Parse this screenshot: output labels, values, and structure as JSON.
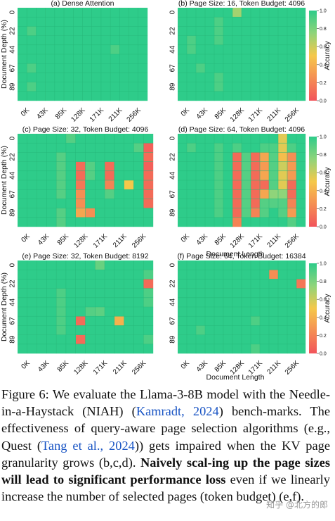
{
  "colors": {
    "green": "#2ecc8a",
    "light": "#8fd47a",
    "yellow": "#f5c84a",
    "orange": "#f59a52",
    "red": "#f2545b"
  },
  "chart_data": [
    {
      "type": "heatmap",
      "title": "(a) Dense Attention",
      "xlabel": "",
      "ylabel": "Document Depth (%)",
      "x": [
        "0K",
        "43K",
        "85K",
        "128K",
        "171K",
        "211K",
        "256K"
      ],
      "y": [
        "0",
        "22",
        "44",
        "67",
        "89"
      ],
      "rows": 10,
      "cols": 14,
      "default": 1.0,
      "cells": [
        [
          2,
          1,
          0.92
        ],
        [
          4,
          10,
          0.92
        ],
        [
          6,
          1,
          0.92
        ],
        [
          8,
          1,
          0.92
        ]
      ]
    },
    {
      "type": "heatmap",
      "title": "(b) Page Size: 16, Token Budget: 4096",
      "xlabel": "",
      "ylabel": "",
      "x": [
        "0K",
        "43K",
        "85K",
        "128K",
        "171K",
        "211K",
        "256K"
      ],
      "y": [
        "0",
        "22",
        "44",
        "67",
        "89"
      ],
      "rows": 10,
      "cols": 14,
      "default": 1.0,
      "cells": [
        [
          0,
          6,
          0.7
        ],
        [
          1,
          4,
          0.92
        ],
        [
          2,
          4,
          0.92
        ],
        [
          3,
          1,
          0.92
        ],
        [
          3,
          4,
          0.92
        ],
        [
          4,
          1,
          0.92
        ],
        [
          6,
          2,
          0.92
        ],
        [
          7,
          4,
          0.92
        ],
        [
          8,
          4,
          0.92
        ]
      ]
    },
    {
      "type": "heatmap",
      "title": "(c) Page Size: 32, Token Budget: 4096",
      "xlabel": "",
      "ylabel": "Document Depth (%)",
      "x": [
        "0K",
        "43K",
        "85K",
        "128K",
        "171K",
        "211K",
        "256K"
      ],
      "y": [
        "0",
        "22",
        "44",
        "67",
        "89"
      ],
      "rows": 10,
      "cols": 14,
      "default": 1.0,
      "cells": [
        [
          0,
          5,
          0.9
        ],
        [
          1,
          12,
          0.9
        ],
        [
          1,
          13,
          0.05
        ],
        [
          2,
          4,
          0.9
        ],
        [
          2,
          13,
          0.1
        ],
        [
          3,
          4,
          0.9
        ],
        [
          3,
          6,
          0.1
        ],
        [
          3,
          7,
          0.9
        ],
        [
          3,
          9,
          0.1
        ],
        [
          3,
          13,
          0.05
        ],
        [
          4,
          4,
          0.9
        ],
        [
          4,
          6,
          0.1
        ],
        [
          4,
          7,
          0.9
        ],
        [
          4,
          9,
          0.1
        ],
        [
          4,
          13,
          0.1
        ],
        [
          5,
          4,
          0.9
        ],
        [
          5,
          6,
          0.15
        ],
        [
          5,
          9,
          0.2
        ],
        [
          5,
          11,
          0.5
        ],
        [
          5,
          13,
          0.1
        ],
        [
          6,
          4,
          0.9
        ],
        [
          6,
          6,
          0.25
        ],
        [
          6,
          9,
          0.9
        ],
        [
          6,
          13,
          0.1
        ],
        [
          7,
          6,
          0.25
        ],
        [
          7,
          13,
          0.1
        ],
        [
          8,
          4,
          0.9
        ],
        [
          8,
          6,
          0.35
        ],
        [
          8,
          7,
          0.25
        ],
        [
          9,
          4,
          0.9
        ]
      ]
    },
    {
      "type": "heatmap",
      "title": "(d) Page Size: 64, Token Budget: 4096",
      "xlabel": "",
      "ylabel": "",
      "x": [
        "0K",
        "43K",
        "85K",
        "128K",
        "171K",
        "211K",
        "256K"
      ],
      "y": [
        "0",
        "22",
        "44",
        "67",
        "89"
      ],
      "rows": 10,
      "cols": 14,
      "default": 1.0,
      "cells": [
        [
          0,
          11,
          0.55
        ],
        [
          1,
          1,
          0.92
        ],
        [
          1,
          4,
          0.92
        ],
        [
          1,
          6,
          0.92
        ],
        [
          1,
          9,
          0.92
        ],
        [
          1,
          10,
          0.92
        ],
        [
          1,
          11,
          0.55
        ],
        [
          1,
          12,
          0.92
        ],
        [
          2,
          4,
          0.92
        ],
        [
          2,
          6,
          0.1
        ],
        [
          2,
          7,
          0.9
        ],
        [
          2,
          8,
          0.1
        ],
        [
          2,
          9,
          0.35
        ],
        [
          2,
          10,
          0.9
        ],
        [
          2,
          11,
          0.45
        ],
        [
          2,
          12,
          0.25
        ],
        [
          3,
          4,
          0.92
        ],
        [
          3,
          6,
          0.1
        ],
        [
          3,
          7,
          0.9
        ],
        [
          3,
          8,
          0.1
        ],
        [
          3,
          9,
          0.3
        ],
        [
          3,
          10,
          0.9
        ],
        [
          3,
          11,
          0.6
        ],
        [
          3,
          12,
          0.3
        ],
        [
          4,
          4,
          0.92
        ],
        [
          4,
          6,
          0.1
        ],
        [
          4,
          7,
          0.9
        ],
        [
          4,
          8,
          0.1
        ],
        [
          4,
          9,
          0.35
        ],
        [
          4,
          10,
          0.9
        ],
        [
          4,
          11,
          0.55
        ],
        [
          4,
          12,
          0.3
        ],
        [
          5,
          4,
          0.92
        ],
        [
          5,
          6,
          0.1
        ],
        [
          5,
          7,
          0.9
        ],
        [
          5,
          8,
          0.1
        ],
        [
          5,
          9,
          0.1
        ],
        [
          5,
          10,
          0.9
        ],
        [
          5,
          11,
          0.55
        ],
        [
          5,
          12,
          0.1
        ],
        [
          6,
          4,
          0.92
        ],
        [
          6,
          6,
          0.1
        ],
        [
          6,
          7,
          0.9
        ],
        [
          6,
          8,
          0.1
        ],
        [
          6,
          9,
          0.35
        ],
        [
          6,
          10,
          0.75
        ],
        [
          6,
          11,
          0.75
        ],
        [
          6,
          12,
          0.1
        ],
        [
          7,
          4,
          0.92
        ],
        [
          7,
          6,
          0.1
        ],
        [
          7,
          7,
          0.9
        ],
        [
          7,
          8,
          0.1
        ],
        [
          7,
          9,
          0.9
        ],
        [
          7,
          10,
          0.9
        ],
        [
          7,
          11,
          0.9
        ],
        [
          7,
          12,
          0.2
        ],
        [
          8,
          4,
          0.92
        ],
        [
          8,
          6,
          0.1
        ],
        [
          8,
          7,
          0.9
        ],
        [
          8,
          8,
          0.2
        ],
        [
          8,
          9,
          0.9
        ],
        [
          8,
          11,
          0.9
        ],
        [
          8,
          12,
          0.3
        ],
        [
          9,
          6,
          0.2
        ],
        [
          9,
          12,
          0.9
        ]
      ]
    },
    {
      "type": "heatmap",
      "title": "(e) Page Size: 32, Token Budget: 8192",
      "xlabel": "",
      "ylabel": "Document Depth (%)",
      "x": [
        "0K",
        "43K",
        "85K",
        "128K",
        "171K",
        "211K",
        "256K"
      ],
      "y": [
        "0",
        "22",
        "44",
        "67",
        "89"
      ],
      "rows": 10,
      "cols": 14,
      "default": 1.0,
      "cells": [
        [
          0,
          8,
          0.85
        ],
        [
          1,
          13,
          0.92
        ],
        [
          2,
          13,
          0.1
        ],
        [
          3,
          4,
          0.92
        ],
        [
          3,
          13,
          0.92
        ],
        [
          4,
          4,
          0.92
        ],
        [
          4,
          13,
          0.92
        ],
        [
          5,
          4,
          0.92
        ],
        [
          5,
          7,
          0.9
        ],
        [
          5,
          8,
          0.88
        ],
        [
          6,
          4,
          0.92
        ],
        [
          6,
          6,
          0.1
        ],
        [
          6,
          10,
          0.4
        ],
        [
          7,
          4,
          0.92
        ],
        [
          8,
          6,
          0.1
        ],
        [
          8,
          13,
          0.92
        ]
      ]
    },
    {
      "type": "heatmap",
      "title": "(f) Page Size: 64, Token Budget: 16384",
      "xlabel": "",
      "ylabel": "",
      "x": [
        "0K",
        "43K",
        "85K",
        "128K",
        "171K",
        "211K",
        "256K"
      ],
      "y": [
        "0",
        "22",
        "44",
        "67",
        "89"
      ],
      "rows": 10,
      "cols": 14,
      "default": 1.0,
      "cells": [
        [
          1,
          10,
          0.25
        ],
        [
          2,
          13,
          0.15
        ],
        [
          6,
          8,
          0.92
        ],
        [
          7,
          2,
          0.92
        ],
        [
          9,
          8,
          0.92
        ]
      ]
    }
  ],
  "colorbar": {
    "label": "Accuracy",
    "ticks": [
      "1.0",
      "0.8",
      "0.6",
      "0.4",
      "0.2",
      "0.0"
    ]
  },
  "shared_xlabel": "Document Length",
  "caption": {
    "p1": "Figure 6:  We evaluate the Llama-3-8B model with the Needle-in-a-Haystack (NIAH) (",
    "ref1": "Kamradt, 2024",
    "p2": ") bench-marks.  The effectiveness of query-aware page selection algorithms (e.g., Quest (",
    "ref2": "Tang et al., 2024",
    "p3": ")) gets impaired when the KV page granularity grows (b,c,d). ",
    "bold": "Naively scal-ing up the page sizes will lead to significant performance loss",
    "p4": " even if we linearly increase the number of selected pages (token budget) (e,f)."
  },
  "watermark": "知乎 @北方的郎"
}
